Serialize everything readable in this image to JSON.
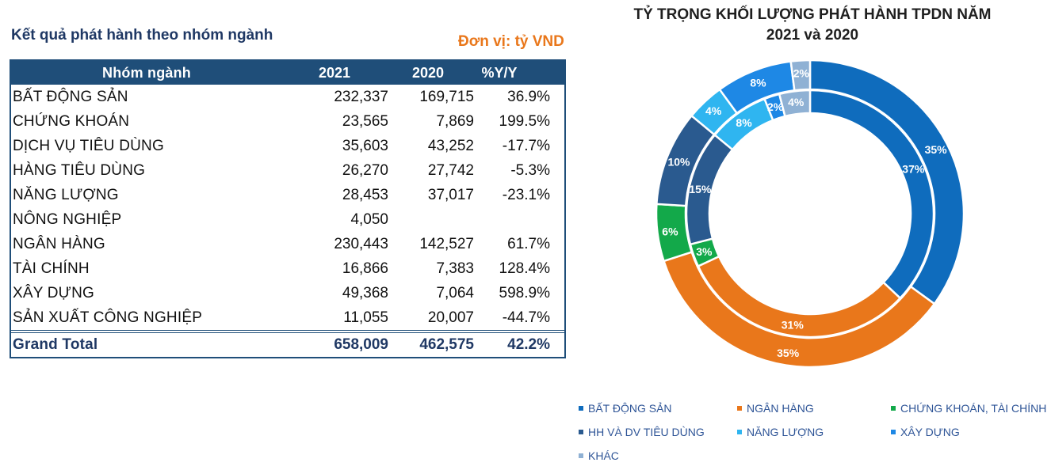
{
  "table": {
    "title": "Kết quả phát hành theo nhóm ngành",
    "unit": "Đơn vị: tỷ VND",
    "headers": [
      "Nhóm ngành",
      "2021",
      "2020",
      "%Y/Y"
    ],
    "rows": [
      {
        "name": "BẤT ĐỘNG SẢN",
        "y2021": "232,337",
        "y2020": "169,715",
        "yoy": "36.9%"
      },
      {
        "name": "CHỨNG KHOÁN",
        "y2021": "23,565",
        "y2020": "7,869",
        "yoy": "199.5%"
      },
      {
        "name": "DỊCH VỤ TIÊU DÙNG",
        "y2021": "35,603",
        "y2020": "43,252",
        "yoy": "-17.7%"
      },
      {
        "name": "HÀNG TIÊU DÙNG",
        "y2021": "26,270",
        "y2020": "27,742",
        "yoy": "-5.3%"
      },
      {
        "name": "NĂNG LƯỢNG",
        "y2021": "28,453",
        "y2020": "37,017",
        "yoy": "-23.1%"
      },
      {
        "name": "NÔNG NGHIỆP",
        "y2021": "4,050",
        "y2020": "",
        "yoy": ""
      },
      {
        "name": "NGÂN HÀNG",
        "y2021": "230,443",
        "y2020": "142,527",
        "yoy": "61.7%"
      },
      {
        "name": "TÀI CHÍNH",
        "y2021": "16,866",
        "y2020": "7,383",
        "yoy": "128.4%"
      },
      {
        "name": "XÂY DỰNG",
        "y2021": "49,368",
        "y2020": "7,064",
        "yoy": "598.9%"
      },
      {
        "name": "SẢN XUẤT CÔNG NGHIỆP",
        "y2021": "11,055",
        "y2020": "20,007",
        "yoy": "-44.7%"
      }
    ],
    "total": {
      "name": "Grand Total",
      "y2021": "658,009",
      "y2020": "462,575",
      "yoy": "42.2%"
    }
  },
  "chart_data": {
    "type": "pie",
    "title_line1": "TỶ TRỌNG KHỐI LƯỢNG PHÁT HÀNH TPDN NĂM",
    "title_line2": "2021 và 2020",
    "categories": [
      "BẤT ĐỘNG SẢN",
      "NGÂN HÀNG",
      "CHỨNG KHOÁN, TÀI CHÍNH",
      "HH VÀ DV TIÊU DÙNG",
      "NĂNG LƯỢNG",
      "XÂY DỰNG",
      "KHÁC"
    ],
    "colors": [
      "#0f6cbd",
      "#e9771b",
      "#13a94a",
      "#2a5a8f",
      "#2fb5f0",
      "#1e88e5",
      "#8fb1d4"
    ],
    "series": [
      {
        "values": [
          35,
          35,
          6,
          10,
          4,
          8,
          2
        ],
        "labels": [
          "35%",
          "35%",
          "6%",
          "10%",
          "4%",
          "8%",
          "2%"
        ]
      },
      {
        "values": [
          37,
          31,
          3,
          15,
          8,
          2,
          4
        ],
        "labels": [
          "37%",
          "31%",
          "3%",
          "15%",
          "8%",
          "2%",
          "4%"
        ]
      }
    ],
    "legend_position": "bottom"
  }
}
